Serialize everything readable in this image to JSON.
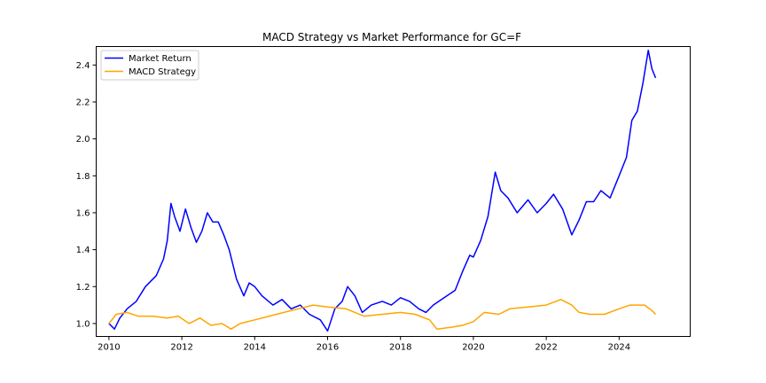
{
  "chart_data": {
    "type": "line",
    "title": "MACD Strategy vs Market Performance for GC=F",
    "xlabel": "",
    "ylabel": "",
    "xlim": [
      2009.65,
      2025.95
    ],
    "ylim": [
      0.93,
      2.5
    ],
    "x_ticks": [
      2010,
      2012,
      2014,
      2016,
      2018,
      2020,
      2022,
      2024
    ],
    "y_ticks": [
      1.0,
      1.2,
      1.4,
      1.6,
      1.8,
      2.0,
      2.2,
      2.4
    ],
    "grid": false,
    "legend_placement": "upper-left",
    "series": [
      {
        "name": "Market Return",
        "color": "#0000ff",
        "points": [
          [
            2010.0,
            1.0
          ],
          [
            2010.15,
            0.97
          ],
          [
            2010.3,
            1.03
          ],
          [
            2010.5,
            1.08
          ],
          [
            2010.75,
            1.12
          ],
          [
            2011.0,
            1.2
          ],
          [
            2011.3,
            1.26
          ],
          [
            2011.5,
            1.35
          ],
          [
            2011.6,
            1.45
          ],
          [
            2011.7,
            1.65
          ],
          [
            2011.8,
            1.58
          ],
          [
            2011.95,
            1.5
          ],
          [
            2012.1,
            1.62
          ],
          [
            2012.25,
            1.52
          ],
          [
            2012.4,
            1.44
          ],
          [
            2012.55,
            1.5
          ],
          [
            2012.7,
            1.6
          ],
          [
            2012.85,
            1.55
          ],
          [
            2013.0,
            1.55
          ],
          [
            2013.15,
            1.48
          ],
          [
            2013.3,
            1.4
          ],
          [
            2013.5,
            1.24
          ],
          [
            2013.7,
            1.15
          ],
          [
            2013.85,
            1.22
          ],
          [
            2014.0,
            1.2
          ],
          [
            2014.2,
            1.15
          ],
          [
            2014.5,
            1.1
          ],
          [
            2014.75,
            1.13
          ],
          [
            2015.0,
            1.08
          ],
          [
            2015.25,
            1.1
          ],
          [
            2015.5,
            1.05
          ],
          [
            2015.8,
            1.02
          ],
          [
            2016.0,
            0.96
          ],
          [
            2016.2,
            1.08
          ],
          [
            2016.4,
            1.12
          ],
          [
            2016.55,
            1.2
          ],
          [
            2016.75,
            1.15
          ],
          [
            2016.95,
            1.06
          ],
          [
            2017.2,
            1.1
          ],
          [
            2017.5,
            1.12
          ],
          [
            2017.75,
            1.1
          ],
          [
            2018.0,
            1.14
          ],
          [
            2018.25,
            1.12
          ],
          [
            2018.5,
            1.08
          ],
          [
            2018.7,
            1.06
          ],
          [
            2018.9,
            1.1
          ],
          [
            2019.2,
            1.14
          ],
          [
            2019.5,
            1.18
          ],
          [
            2019.7,
            1.28
          ],
          [
            2019.9,
            1.37
          ],
          [
            2020.0,
            1.36
          ],
          [
            2020.2,
            1.45
          ],
          [
            2020.4,
            1.58
          ],
          [
            2020.6,
            1.82
          ],
          [
            2020.75,
            1.72
          ],
          [
            2020.95,
            1.68
          ],
          [
            2021.2,
            1.6
          ],
          [
            2021.5,
            1.67
          ],
          [
            2021.75,
            1.6
          ],
          [
            2022.0,
            1.65
          ],
          [
            2022.2,
            1.7
          ],
          [
            2022.45,
            1.62
          ],
          [
            2022.7,
            1.48
          ],
          [
            2022.9,
            1.56
          ],
          [
            2023.1,
            1.66
          ],
          [
            2023.3,
            1.66
          ],
          [
            2023.5,
            1.72
          ],
          [
            2023.75,
            1.68
          ],
          [
            2024.0,
            1.8
          ],
          [
            2024.2,
            1.9
          ],
          [
            2024.35,
            2.1
          ],
          [
            2024.5,
            2.15
          ],
          [
            2024.65,
            2.3
          ],
          [
            2024.8,
            2.48
          ],
          [
            2024.9,
            2.38
          ],
          [
            2025.0,
            2.33
          ]
        ]
      },
      {
        "name": "MACD Strategy",
        "color": "#ffa500",
        "points": [
          [
            2010.0,
            1.0
          ],
          [
            2010.2,
            1.05
          ],
          [
            2010.5,
            1.06
          ],
          [
            2010.8,
            1.04
          ],
          [
            2011.2,
            1.04
          ],
          [
            2011.6,
            1.03
          ],
          [
            2011.9,
            1.04
          ],
          [
            2012.2,
            1.0
          ],
          [
            2012.5,
            1.03
          ],
          [
            2012.8,
            0.99
          ],
          [
            2013.1,
            1.0
          ],
          [
            2013.35,
            0.97
          ],
          [
            2013.6,
            1.0
          ],
          [
            2014.0,
            1.02
          ],
          [
            2014.4,
            1.04
          ],
          [
            2014.8,
            1.06
          ],
          [
            2015.2,
            1.08
          ],
          [
            2015.6,
            1.1
          ],
          [
            2016.0,
            1.09
          ],
          [
            2016.5,
            1.08
          ],
          [
            2017.0,
            1.04
          ],
          [
            2017.5,
            1.05
          ],
          [
            2018.0,
            1.06
          ],
          [
            2018.4,
            1.05
          ],
          [
            2018.8,
            1.02
          ],
          [
            2019.0,
            0.97
          ],
          [
            2019.4,
            0.98
          ],
          [
            2019.7,
            0.99
          ],
          [
            2020.0,
            1.01
          ],
          [
            2020.3,
            1.06
          ],
          [
            2020.7,
            1.05
          ],
          [
            2021.0,
            1.08
          ],
          [
            2021.5,
            1.09
          ],
          [
            2022.0,
            1.1
          ],
          [
            2022.4,
            1.13
          ],
          [
            2022.7,
            1.1
          ],
          [
            2022.9,
            1.06
          ],
          [
            2023.2,
            1.05
          ],
          [
            2023.6,
            1.05
          ],
          [
            2024.0,
            1.08
          ],
          [
            2024.3,
            1.1
          ],
          [
            2024.7,
            1.1
          ],
          [
            2024.9,
            1.07
          ],
          [
            2025.0,
            1.05
          ]
        ]
      }
    ]
  }
}
